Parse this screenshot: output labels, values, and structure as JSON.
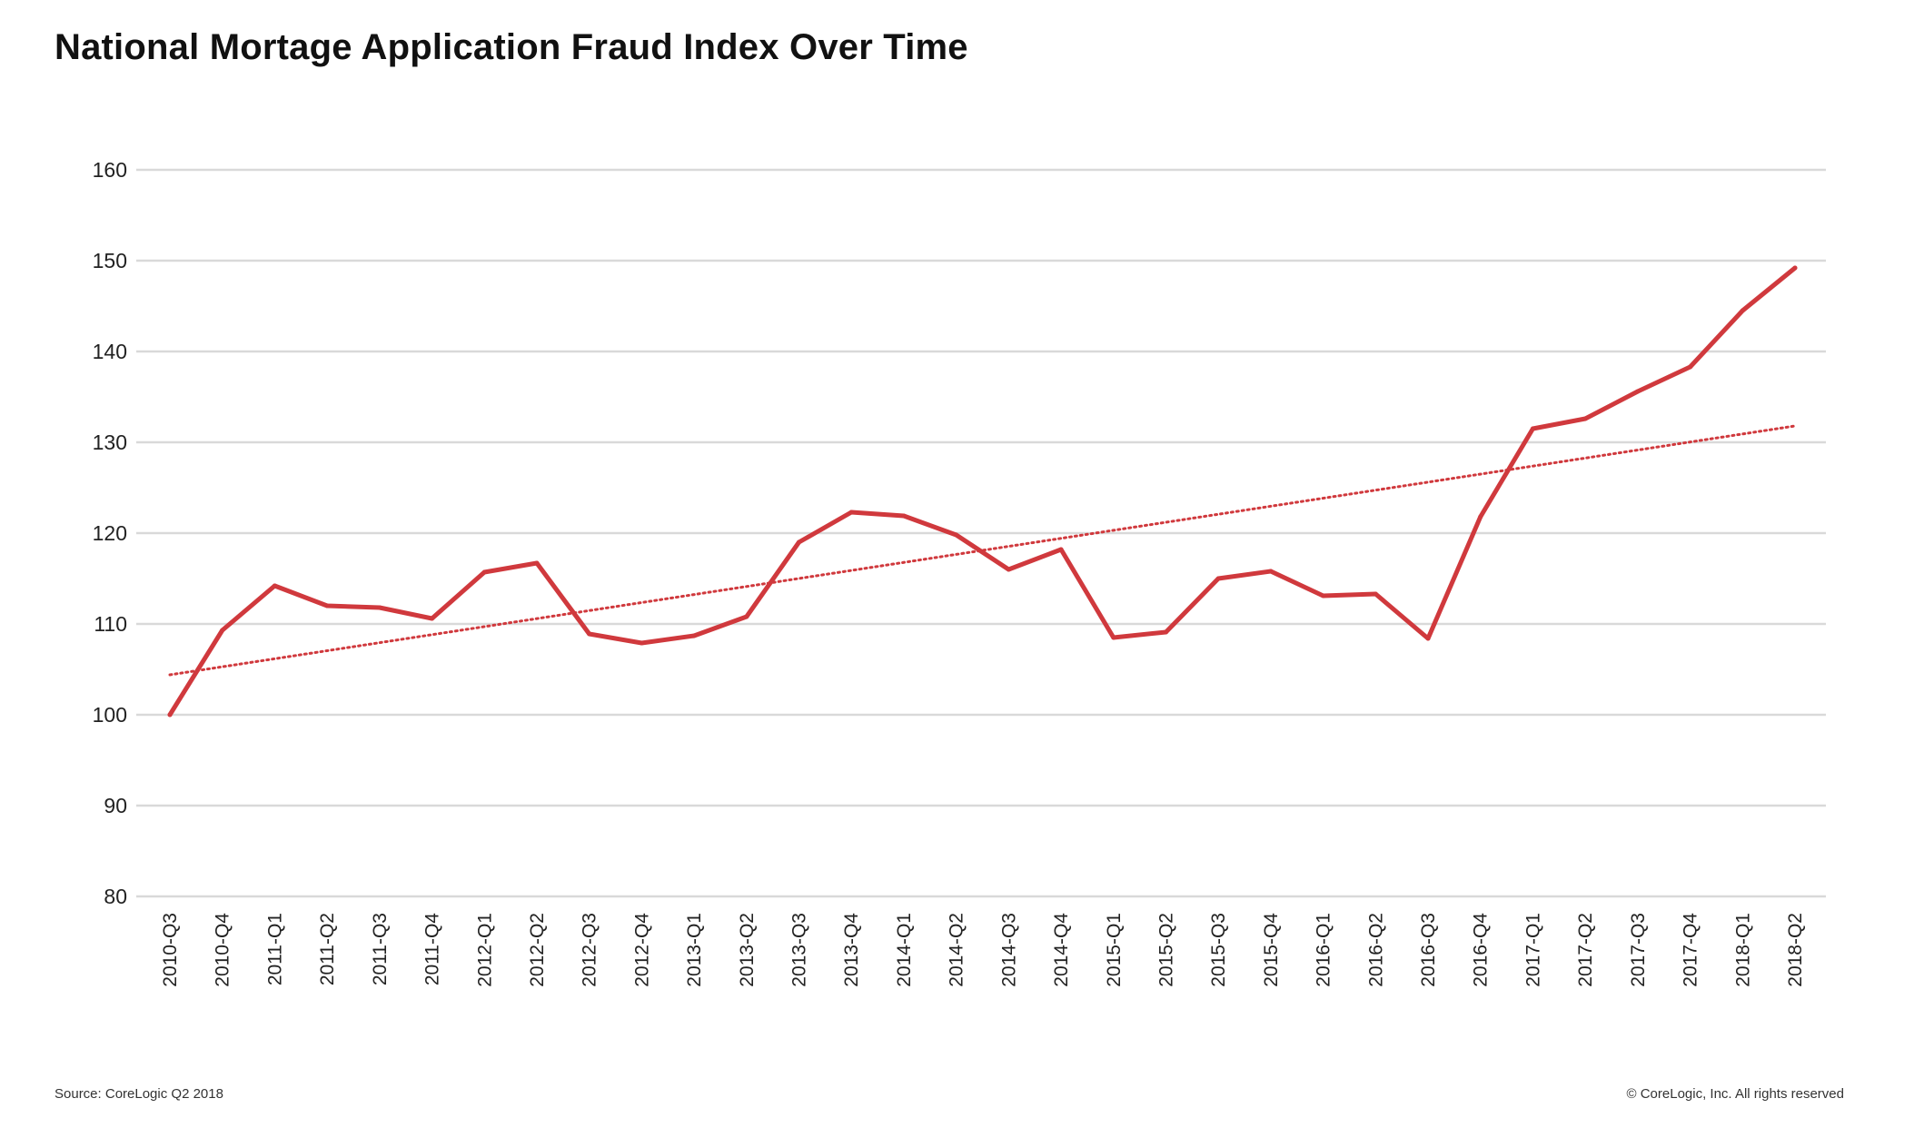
{
  "footer": {
    "source": "Source: CoreLogic Q2 2018",
    "copyright": "© CoreLogic, Inc. All rights reserved"
  },
  "colors": {
    "series_line": "#d0393d",
    "trend_line": "#d0393d",
    "gridline": "#d9d9d9",
    "background": "#ffffff"
  },
  "chart_data": {
    "type": "line",
    "title": "National Mortage Application Fraud Index Over Time",
    "xlabel": "",
    "ylabel": "",
    "ylim": [
      80,
      160
    ],
    "yticks": [
      80,
      90,
      100,
      110,
      120,
      130,
      140,
      150,
      160
    ],
    "grid": true,
    "legend": "none",
    "categories": [
      "2010-Q3",
      "2010-Q4",
      "2011-Q1",
      "2011-Q2",
      "2011-Q3",
      "2011-Q4",
      "2012-Q1",
      "2012-Q2",
      "2012-Q3",
      "2012-Q4",
      "2013-Q1",
      "2013-Q2",
      "2013-Q3",
      "2013-Q4",
      "2014-Q1",
      "2014-Q2",
      "2014-Q3",
      "2014-Q4",
      "2015-Q1",
      "2015-Q2",
      "2015-Q3",
      "2015-Q4",
      "2016-Q1",
      "2016-Q2",
      "2016-Q3",
      "2016-Q4",
      "2017-Q1",
      "2017-Q2",
      "2017-Q3",
      "2017-Q4",
      "2018-Q1",
      "2018-Q2"
    ],
    "series": [
      {
        "values": [
          100,
          109.3,
          114.2,
          112,
          111.8,
          110.6,
          115.7,
          116.7,
          108.9,
          107.9,
          108.7,
          110.8,
          119,
          122.3,
          121.9,
          119.8,
          116,
          118.2,
          108.5,
          109.1,
          115,
          115.8,
          113.1,
          113.3,
          108.4,
          121.8,
          131.5,
          132.6,
          135.6,
          138.3,
          144.5,
          149.2
        ],
        "style": "solid"
      }
    ],
    "trendline": {
      "style": "dotted",
      "start_value": 104.4,
      "end_value": 131.8
    }
  }
}
